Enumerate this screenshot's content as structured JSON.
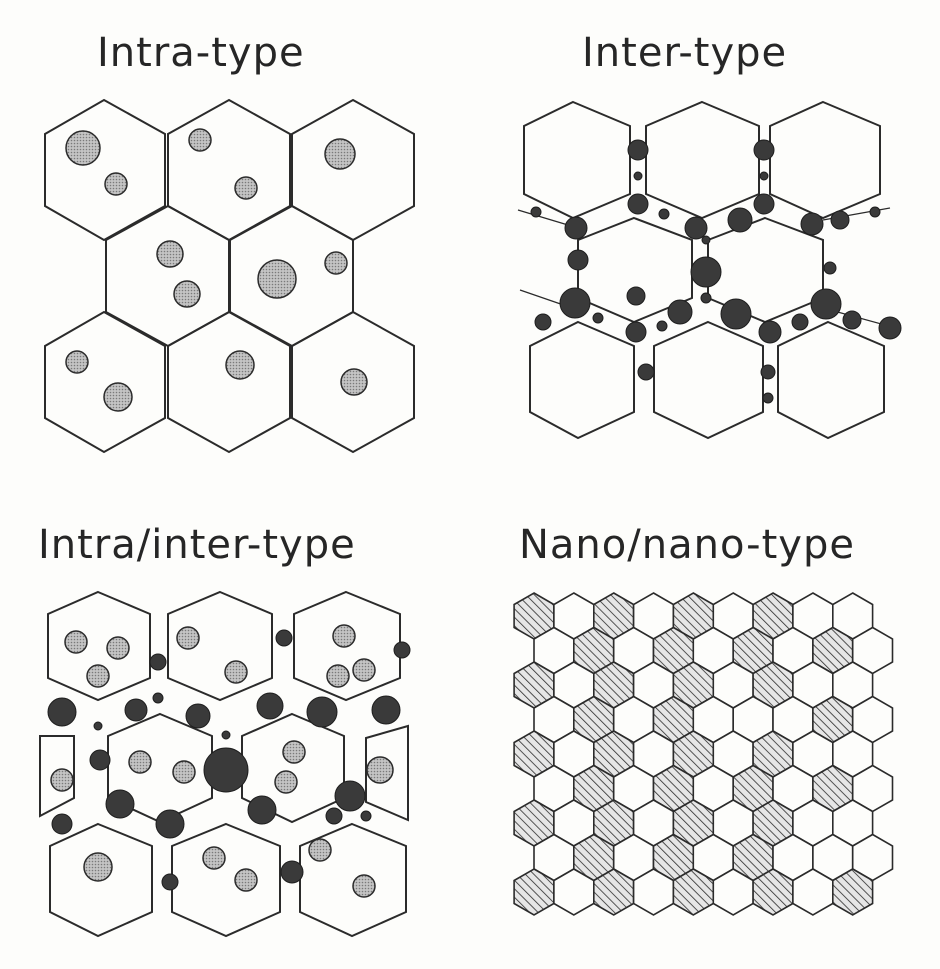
{
  "panels": [
    {
      "id": "intra",
      "title": "Intra-type"
    },
    {
      "id": "inter",
      "title": "Inter-type"
    },
    {
      "id": "intra-inter",
      "title": "Intra/inter-type"
    },
    {
      "id": "nano-nano",
      "title": "Nano/nano-type"
    }
  ],
  "colors": {
    "outline": "#2b2b2b",
    "intra_particle_fill": "#b5b5b5",
    "inter_particle_fill": "#3a3a3a",
    "boundary_band_fill": "#d2d2d2",
    "background": "#fdfdfb"
  }
}
